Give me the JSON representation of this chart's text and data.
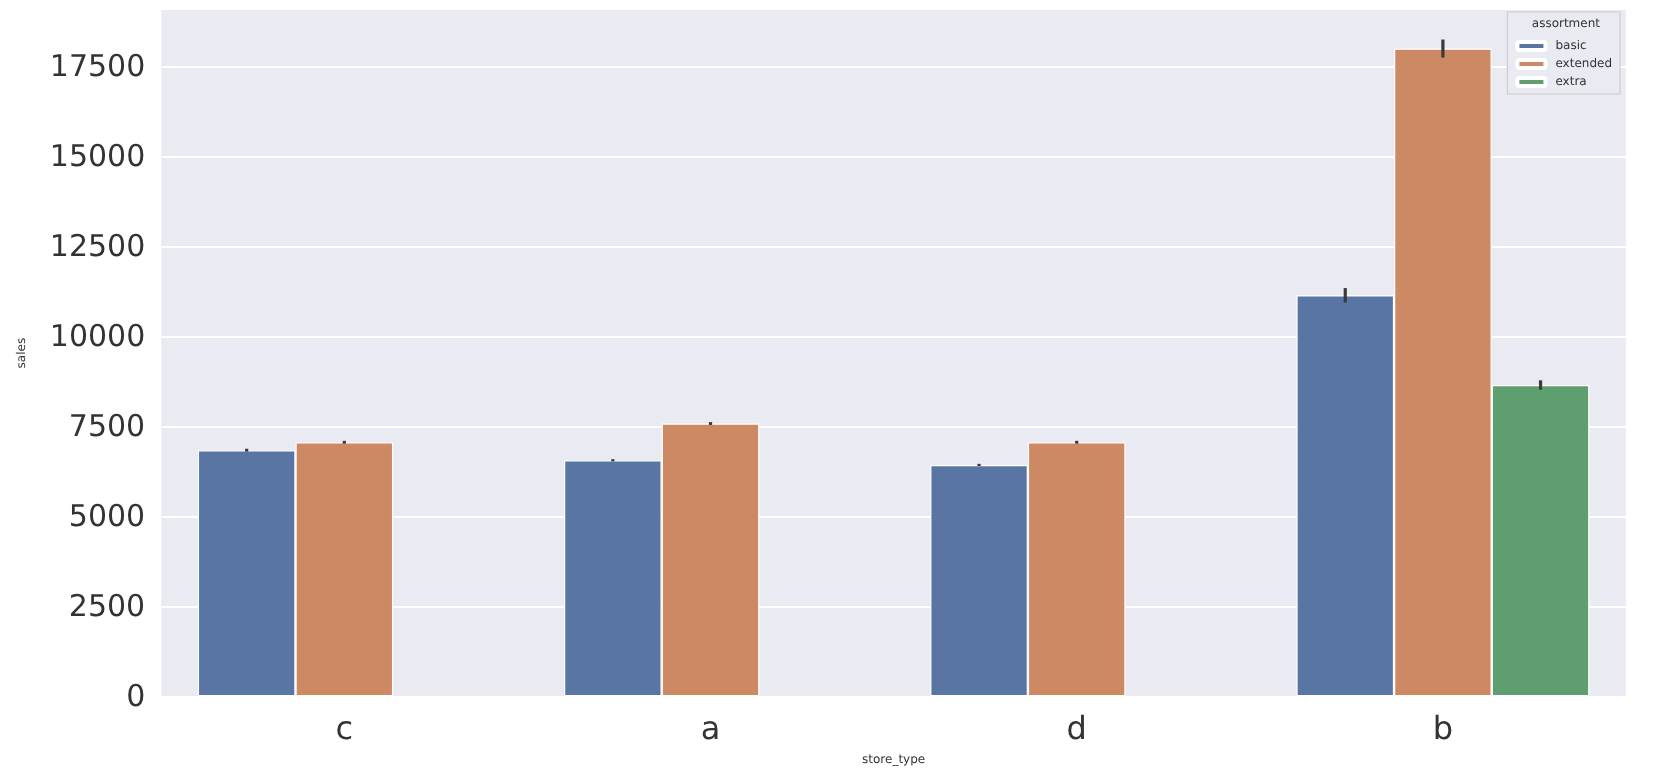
{
  "chart_data": {
    "type": "bar",
    "xlabel": "store_type",
    "ylabel": "sales",
    "legend_title": "assortment",
    "categories": [
      "c",
      "a",
      "d",
      "b"
    ],
    "series": [
      {
        "name": "basic",
        "color": "#5875a4",
        "values": [
          6830,
          6550,
          6420,
          11130
        ],
        "errors": [
          40,
          30,
          30,
          200
        ]
      },
      {
        "name": "extended",
        "color": "#cc8963",
        "values": [
          7050,
          7570,
          7050,
          17980
        ],
        "errors": [
          40,
          40,
          40,
          250
        ]
      },
      {
        "name": "extra",
        "color": "#5f9e6e",
        "values": [
          null,
          null,
          null,
          8640
        ],
        "errors": [
          null,
          null,
          null,
          130
        ]
      }
    ],
    "ylim": [
      0,
      19050
    ],
    "yticks": [
      0,
      2500,
      5000,
      7500,
      10000,
      12500,
      15000,
      17500
    ],
    "grid": true,
    "legend": "top right"
  }
}
